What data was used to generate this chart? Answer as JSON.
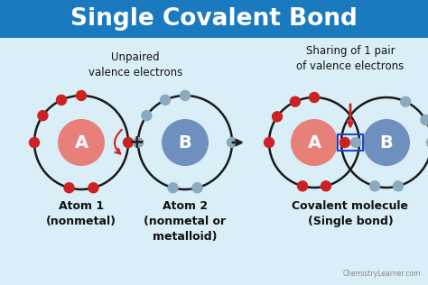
{
  "title": "Single Covalent Bond",
  "title_bg_color": "#1a7abf",
  "title_text_color": "#ffffff",
  "body_bg_color": "#daeef7",
  "unpaired_label": "Unpaired\nvalence electrons",
  "sharing_label": "Sharing of 1 pair\nof valence electrons",
  "atom1_label": "Atom 1\n(nonmetal)",
  "atom2_label": "Atom 2\n(nonmetal or\nmetalloid)",
  "covalent_label": "Covalent molecule\n(Single bond)",
  "watermark": "ChemistryLearner.com",
  "atom_A_color": "#e8807a",
  "atom_B_color": "#6f8fbf",
  "orbit_color": "#1a1a1a",
  "electron_A_color": "#cc2222",
  "electron_B_color": "#8baabf",
  "red_arrow_color": "#cc2222",
  "bond_box_color": "#2244cc",
  "plus_color": "#222222",
  "label_color": "#111111"
}
